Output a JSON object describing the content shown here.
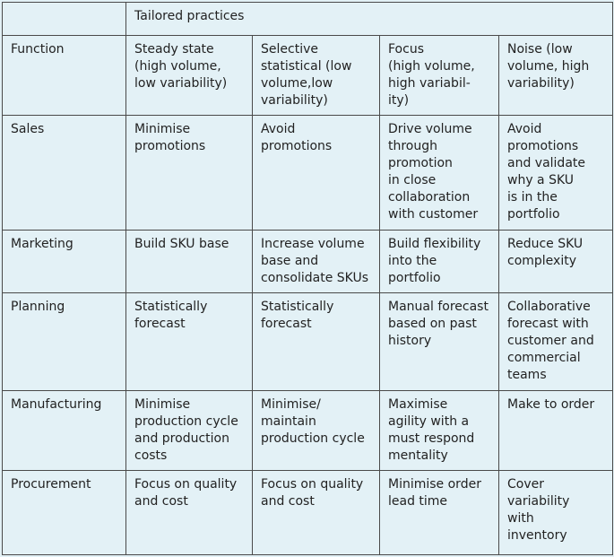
{
  "table": {
    "super_header": "Tailored practices",
    "columns": [
      "Function",
      "Steady state\n(high volume,\nlow variability)",
      "Selective\nstatistical (low\nvolume,low\nvariability)",
      "Focus\n(high volume,\nhigh variabil-\nity)",
      "Noise (low\nvolume, high\nvariability)"
    ],
    "rows": [
      {
        "function": "Sales",
        "cells": [
          "Minimise\npromotions",
          "Avoid\npromotions",
          "Drive volume\nthrough\npromotion\nin close\ncollaboration\nwith customer",
          "Avoid\npromotions\nand validate\nwhy a SKU\nis in the\nportfolio"
        ]
      },
      {
        "function": "Marketing",
        "cells": [
          "Build SKU base",
          "Increase volume\nbase and\nconsolidate SKUs",
          "Build flexibility\ninto the\nportfolio",
          "Reduce SKU\ncomplexity"
        ]
      },
      {
        "function": "Planning",
        "cells": [
          "Statistically\nforecast",
          "Statistically\nforecast",
          "Manual forecast\nbased on past\nhistory",
          "Collaborative\nforecast with\ncustomer and\ncommercial\nteams"
        ]
      },
      {
        "function": "Manufacturing",
        "cells": [
          "Minimise\nproduction cycle\nand production\ncosts",
          "Minimise/\nmaintain\nproduction cycle",
          "Maximise\nagility with a\nmust respond\nmentality",
          "Make to order"
        ]
      },
      {
        "function": "Procurement",
        "cells": [
          "Focus on quality\nand cost",
          "Focus on quality\nand cost",
          "Minimise order\nlead time",
          "Cover\nvariability\nwith\ninventory"
        ]
      }
    ]
  }
}
